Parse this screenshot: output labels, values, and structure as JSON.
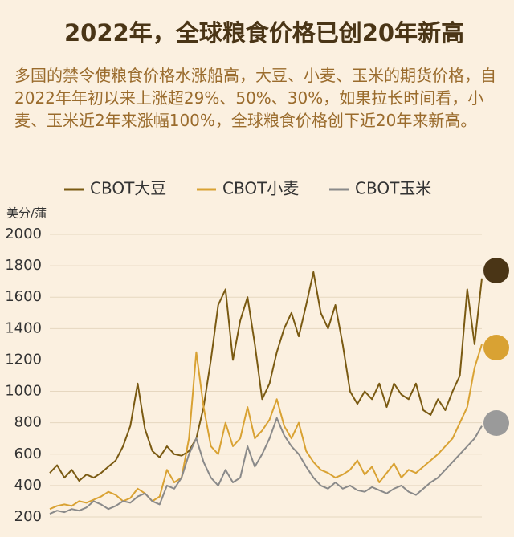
{
  "chart_data": {
    "type": "line",
    "title": "2022年，全球粮食价格已创20年新高",
    "subtitle": "多国的禁令使粮食价格水涨船高，大豆、小麦、玉米的期货价格，自2022年年初以来上涨超29%、50%、30%，如果拉长时间看，小麦、玉米近2年来涨幅100%，全球粮食价格创下近20年来新高。",
    "ylabel": "美分/蒲",
    "ylim": [
      200,
      2000
    ],
    "yticks": [
      200,
      400,
      600,
      800,
      1000,
      1200,
      1400,
      1600,
      1800,
      2000
    ],
    "grid": true,
    "series": [
      {
        "name": "CBOT大豆",
        "color": "#7a5a12",
        "values": [
          480,
          530,
          450,
          500,
          430,
          470,
          450,
          480,
          520,
          560,
          650,
          780,
          1050,
          760,
          620,
          580,
          650,
          600,
          590,
          620,
          700,
          900,
          1200,
          1550,
          1650,
          1200,
          1450,
          1600,
          1300,
          950,
          1050,
          1250,
          1400,
          1500,
          1350,
          1550,
          1760,
          1500,
          1400,
          1550,
          1300,
          1000,
          920,
          1000,
          950,
          1050,
          900,
          1050,
          980,
          950,
          1050,
          880,
          850,
          950,
          880,
          1000,
          1100,
          1650,
          1300,
          1720
        ]
      },
      {
        "name": "CBOT小麦",
        "color": "#d9a233",
        "values": [
          250,
          270,
          280,
          270,
          300,
          290,
          310,
          330,
          360,
          340,
          300,
          320,
          380,
          350,
          300,
          330,
          500,
          420,
          450,
          700,
          1250,
          900,
          650,
          600,
          800,
          650,
          700,
          900,
          700,
          750,
          820,
          950,
          780,
          700,
          800,
          620,
          550,
          500,
          480,
          450,
          470,
          500,
          560,
          470,
          520,
          420,
          480,
          540,
          450,
          500,
          480,
          520,
          560,
          600,
          650,
          700,
          800,
          900,
          1150,
          1300
        ]
      },
      {
        "name": "CBOT玉米",
        "color": "#8a8a8a",
        "values": [
          220,
          240,
          230,
          250,
          240,
          260,
          300,
          280,
          250,
          270,
          300,
          290,
          330,
          350,
          300,
          280,
          400,
          380,
          450,
          600,
          700,
          550,
          450,
          400,
          500,
          420,
          450,
          650,
          520,
          600,
          700,
          830,
          720,
          650,
          600,
          520,
          450,
          400,
          380,
          420,
          380,
          400,
          370,
          360,
          390,
          370,
          350,
          380,
          400,
          360,
          340,
          380,
          420,
          450,
          500,
          550,
          600,
          650,
          700,
          780
        ]
      }
    ]
  }
}
